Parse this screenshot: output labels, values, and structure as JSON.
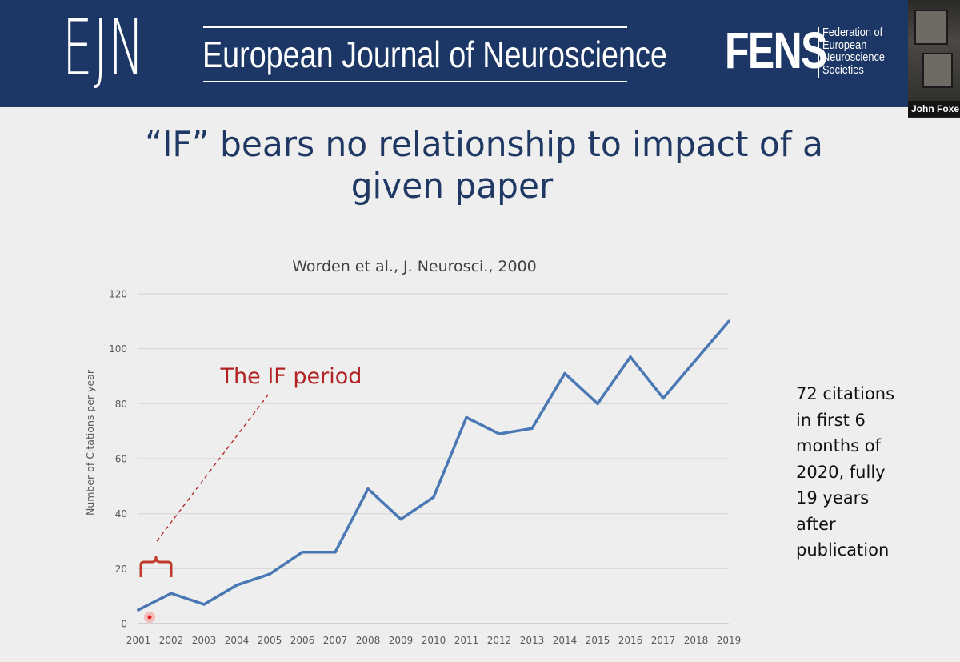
{
  "header": {
    "logo_text": "EJN",
    "journal_title": "European Journal of Neuroscience",
    "partner_logo_text": "FENS",
    "partner_name_lines": [
      "Federation of",
      "European",
      "Neuroscience",
      "Societies"
    ]
  },
  "video_participant": {
    "name": "John Foxe"
  },
  "slide": {
    "title_lines": [
      "“IF” bears no relationship to impact of a",
      "given paper"
    ],
    "annotation": "The IF period",
    "side_note_lines": [
      "72 citations",
      "in first 6",
      "months of",
      "2020, fully",
      "19 years",
      "after",
      "publication"
    ]
  },
  "chart_data": {
    "type": "line",
    "title": "Worden et al., J. Neurosci.,  2000",
    "xlabel": "",
    "ylabel": "Number of Citations per year",
    "categories": [
      "2001",
      "2002",
      "2003",
      "2004",
      "2005",
      "2006",
      "2007",
      "2008",
      "2009",
      "2010",
      "2011",
      "2012",
      "2013",
      "2014",
      "2015",
      "2016",
      "2017",
      "2018",
      "2019"
    ],
    "series": [
      {
        "values": [
          5,
          11,
          7,
          14,
          18,
          26,
          26,
          49,
          38,
          46,
          75,
          69,
          71,
          91,
          80,
          97,
          82,
          96,
          110
        ]
      }
    ],
    "yticks": [
      0,
      20,
      40,
      60,
      80,
      100,
      120
    ],
    "ylim": [
      0,
      120
    ],
    "grid": true,
    "colors": {
      "line": "#4a78b5",
      "grid": "#d6d6d6",
      "tick_text": "#595959",
      "annotation": "#b22222"
    }
  }
}
